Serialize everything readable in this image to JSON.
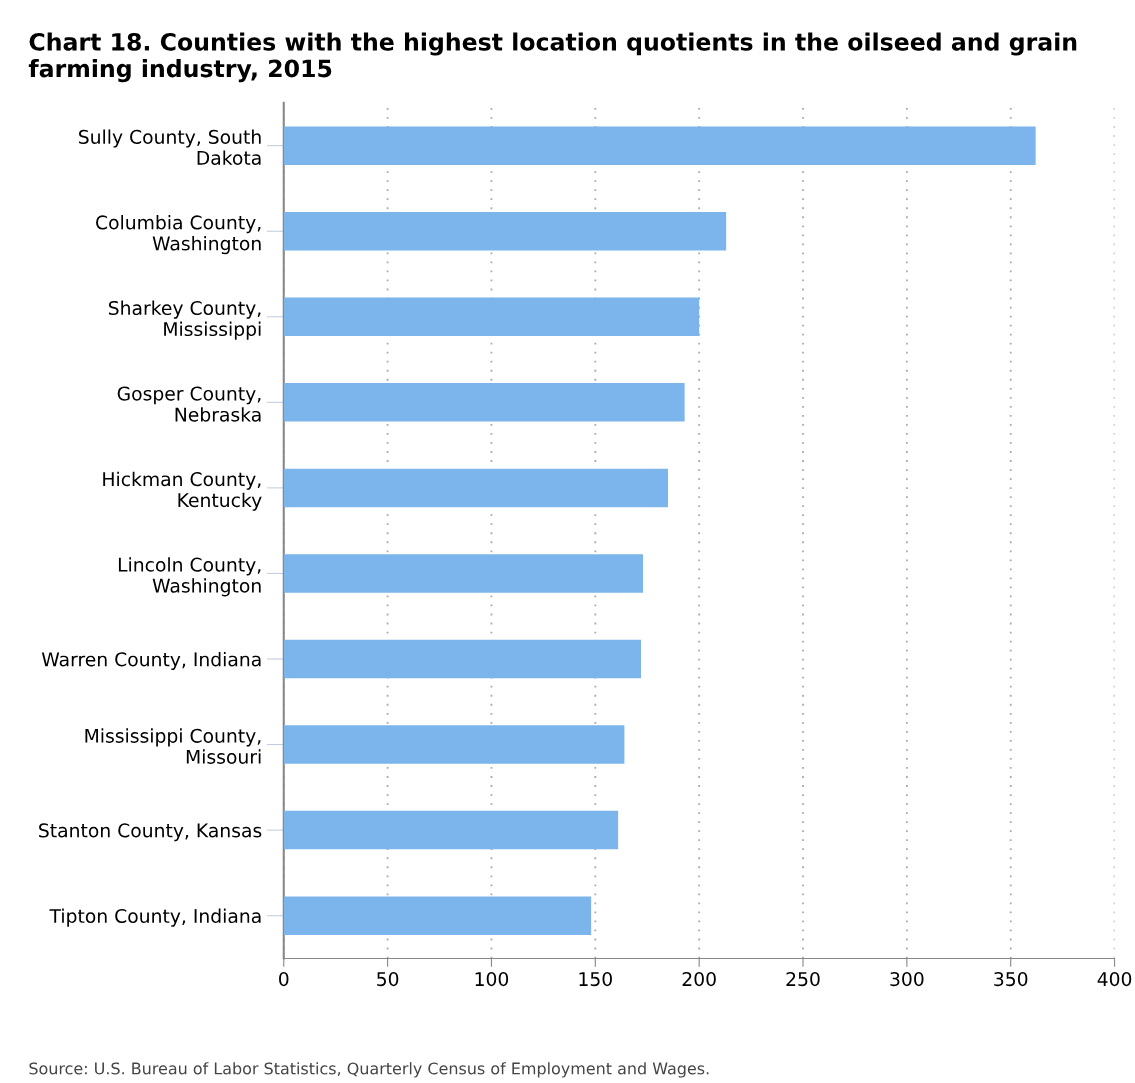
{
  "chart_data": {
    "type": "bar",
    "orientation": "horizontal",
    "title": "Chart 18. Counties with the highest location quotients in the oilseed and grain farming industry, 2015",
    "categories": [
      "Sully County, South Dakota",
      "Columbia County, Washington",
      "Sharkey County, Mississippi",
      "Gosper County, Nebraska",
      "Hickman County, Kentucky",
      "Lincoln County, Washington",
      "Warren County, Indiana",
      "Mississippi County, Missouri",
      "Stanton County, Kansas",
      "Tipton County, Indiana"
    ],
    "values": [
      362,
      213,
      200,
      193,
      185,
      173,
      172,
      164,
      161,
      148
    ],
    "color": "#7cb5ec",
    "xlim": [
      0,
      400
    ],
    "xticks": [
      0,
      50,
      100,
      150,
      200,
      250,
      300,
      350,
      400
    ],
    "grid": "x",
    "annotations": [
      "Source: U.S. Bureau of Labor Statistics, Quarterly Census of Employment and Wages."
    ]
  }
}
